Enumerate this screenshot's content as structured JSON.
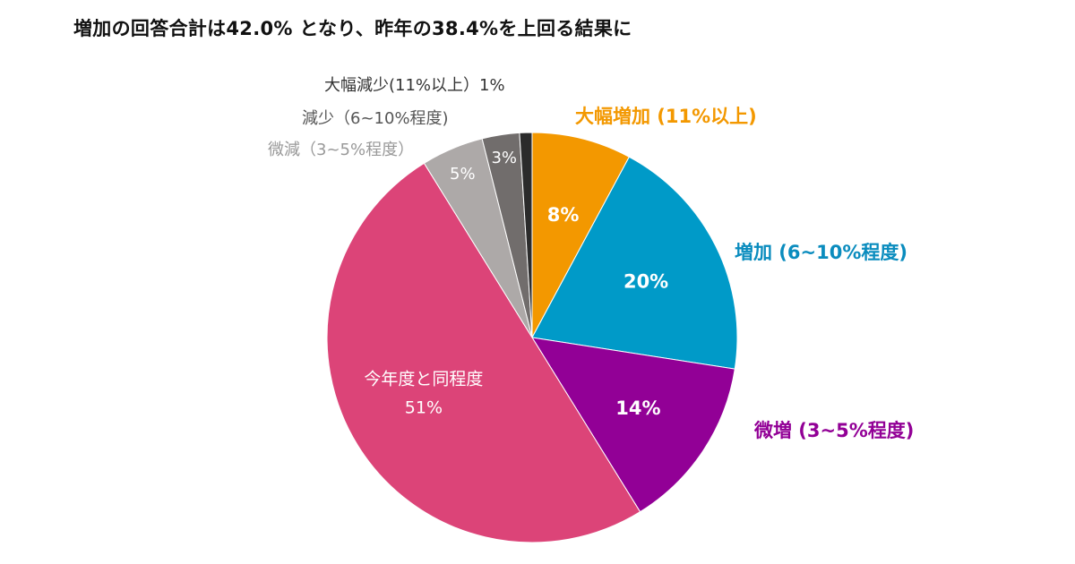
{
  "title": "増加の回答合計は42.0% となり、昨年の38.4%を上回る結果に",
  "chart_data": {
    "type": "pie",
    "start_angle_deg": 0,
    "direction": "clockwise",
    "slices": [
      {
        "label": "大幅増加 (11%以上)",
        "value": 8,
        "value_label": "8%",
        "color": "#F39800",
        "label_color": "#F39800"
      },
      {
        "label": "増加 (6~10%程度)",
        "value": 20,
        "value_label": "20%",
        "color": "#009AC8",
        "label_color": "#0A8CBE"
      },
      {
        "label": "微増 (3~5%程度)",
        "value": 14,
        "value_label": "14%",
        "color": "#920096",
        "label_color": "#920096"
      },
      {
        "label": "今年度と同程度",
        "value": 51,
        "value_label": "51%",
        "color": "#DC4478",
        "label_color": "#FFFFFF"
      },
      {
        "label": "微減（3~5%程度）",
        "value": 5,
        "value_label": "5%",
        "color": "#ADA9A8",
        "label_color": "#999999"
      },
      {
        "label": "減少（6~10%程度)",
        "value": 3,
        "value_label": "3%",
        "color": "#716D6C",
        "label_color": "#555555"
      },
      {
        "label": "大幅減少(11%以上）1%",
        "value": 1,
        "value_label": "",
        "color": "#2B2B2B",
        "label_color": "#333333"
      }
    ]
  }
}
